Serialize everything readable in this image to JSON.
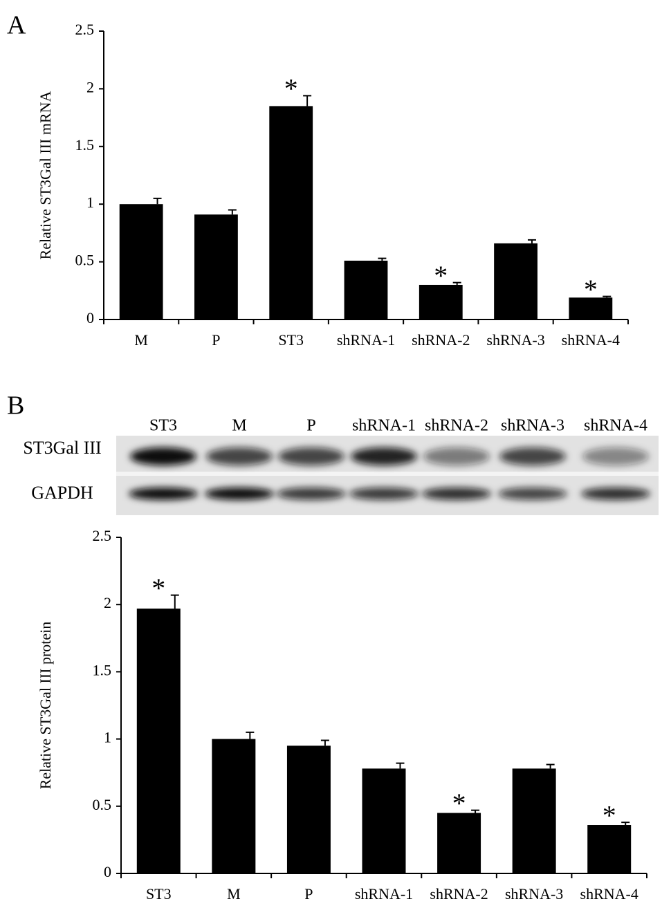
{
  "chart_data": [
    {
      "type": "bar",
      "panel": "A",
      "y_label": "Relative ST3Gal III mRNA",
      "categories": [
        "M",
        "P",
        "ST3",
        "shRNA-1",
        "shRNA-2",
        "shRNA-3",
        "shRNA-4"
      ],
      "values": [
        1.0,
        0.91,
        1.85,
        0.51,
        0.3,
        0.66,
        0.19
      ],
      "errors": [
        0.05,
        0.04,
        0.09,
        0.02,
        0.02,
        0.03,
        0.01
      ],
      "annotations": [
        null,
        null,
        "*",
        null,
        "*",
        null,
        "*"
      ],
      "color": "#000000",
      "ylim": [
        0,
        2.5
      ],
      "yticks": [
        0,
        0.5,
        1,
        1.5,
        2,
        2.5
      ]
    },
    {
      "type": "bar",
      "panel": "B",
      "y_label": "Relative ST3Gal III protein",
      "categories": [
        "ST3",
        "M",
        "P",
        "shRNA-1",
        "shRNA-2",
        "shRNA-3",
        "shRNA-4"
      ],
      "values": [
        1.97,
        1.0,
        0.95,
        0.78,
        0.45,
        0.78,
        0.36
      ],
      "errors": [
        0.1,
        0.05,
        0.04,
        0.04,
        0.02,
        0.03,
        0.02
      ],
      "annotations": [
        "*",
        null,
        null,
        null,
        "*",
        null,
        "*"
      ],
      "color": "#000000",
      "ylim": [
        0,
        2.5
      ],
      "yticks": [
        0,
        0.5,
        1,
        1.5,
        2,
        2.5
      ]
    }
  ],
  "blot": {
    "lanes": [
      "ST3",
      "M",
      "P",
      "shRNA-1",
      "shRNA-2",
      "shRNA-3",
      "shRNA-4"
    ],
    "rows": [
      "ST3Gal III",
      "GAPDH"
    ]
  }
}
